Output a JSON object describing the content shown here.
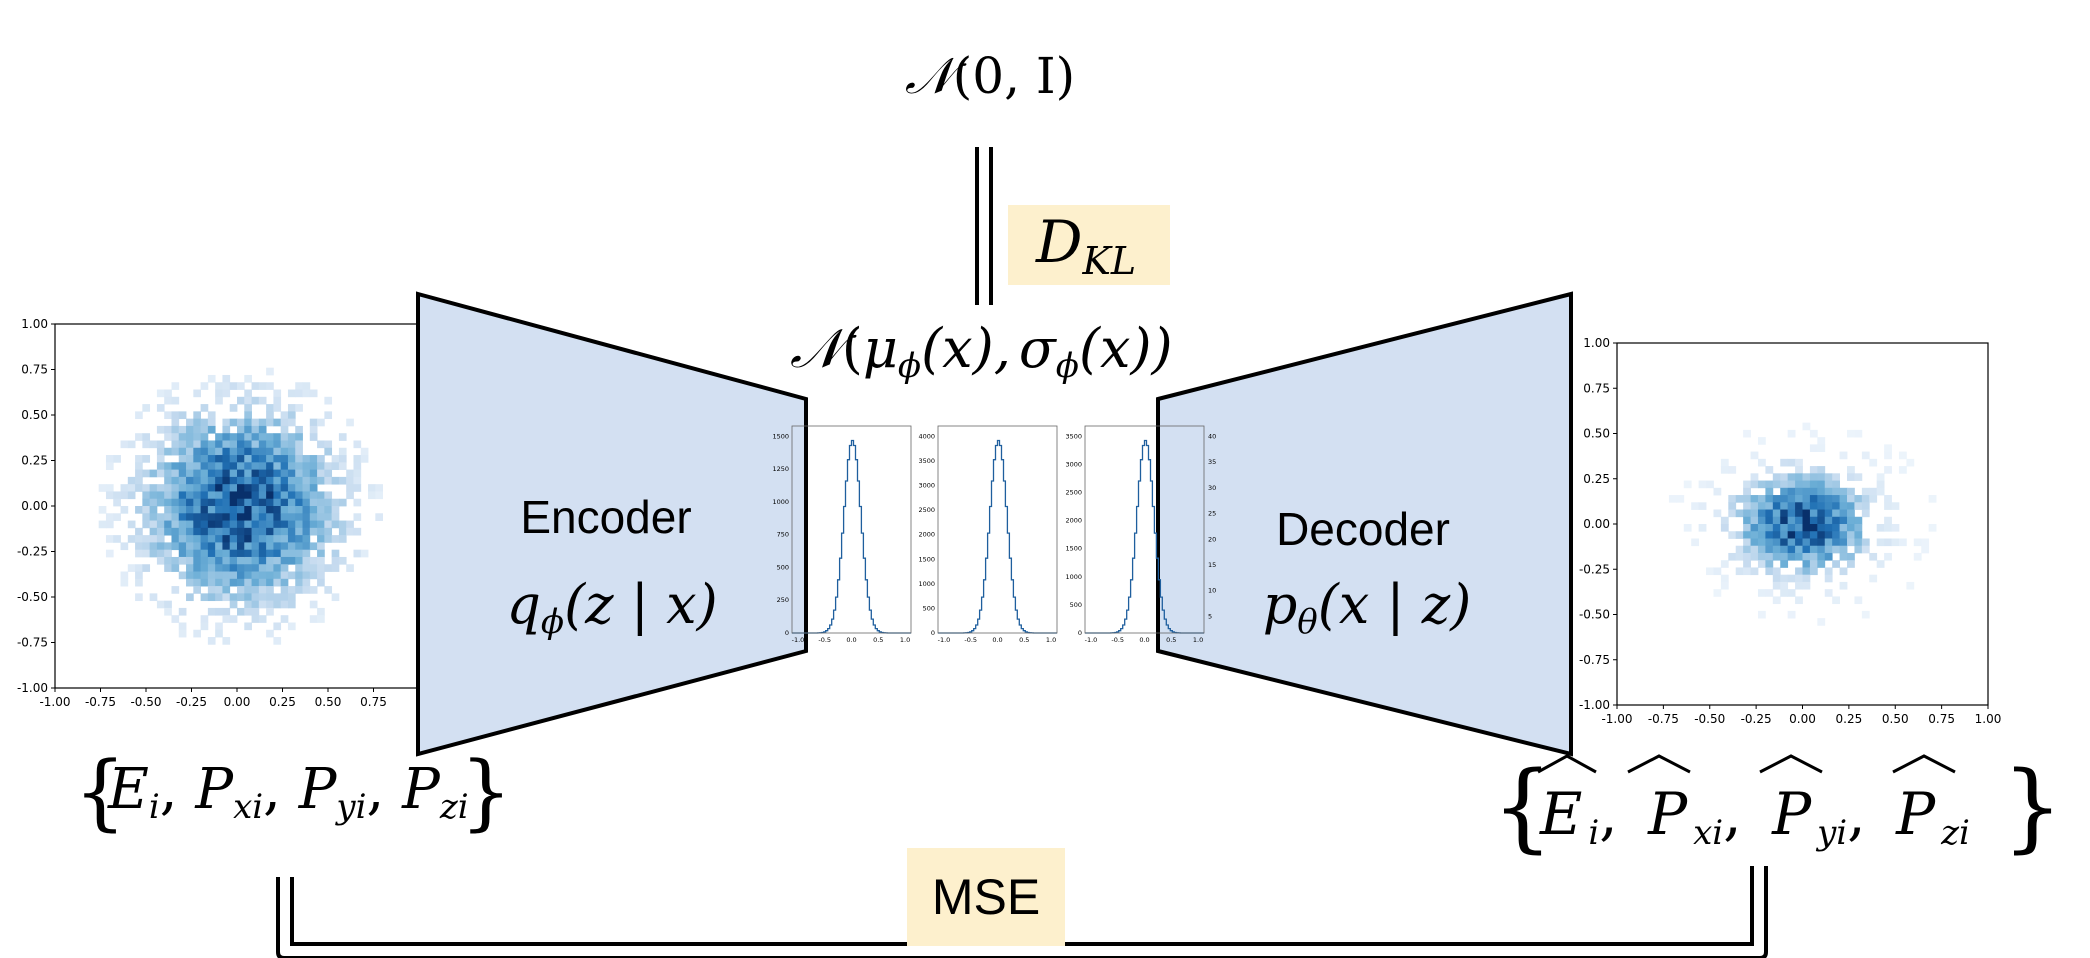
{
  "prior": {
    "N": "𝒩",
    "rest": "(0, I)"
  },
  "kl_label": {
    "main": "D",
    "sub": "KL"
  },
  "latent_dist": {
    "N": "𝒩",
    "open": "(",
    "mu": "μ",
    "phi1": "ϕ",
    "x1": "(x),",
    "sigma": "σ",
    "phi2": "ϕ",
    "x2": "(x))"
  },
  "encoder": {
    "title": "Encoder",
    "q": "q",
    "phi": "ϕ",
    "args": "(z | x)"
  },
  "decoder": {
    "title": "Decoder",
    "p": "p",
    "theta": "θ",
    "args": "(x | z)"
  },
  "input_set": {
    "brace_open": "{",
    "brace_close": "}",
    "items": [
      {
        "main": "E",
        "sub": "i"
      },
      {
        "main": "P",
        "sub": "xi"
      },
      {
        "main": "P",
        "sub": "yi"
      },
      {
        "main": "P",
        "sub": "zi"
      }
    ]
  },
  "output_set": {
    "brace_open": "{",
    "brace_close": "}",
    "items": [
      {
        "main": "E",
        "sub": "i"
      },
      {
        "main": "P",
        "sub": "xi"
      },
      {
        "main": "P",
        "sub": "yi"
      },
      {
        "main": "P",
        "sub": "zi"
      }
    ]
  },
  "mse_label": "MSE",
  "colors": {
    "trapezoid_fill": "#d3e0f2",
    "label_box": "#fdf0cd",
    "scatter_dark": "#08306b",
    "scatter_mid": "#2171b5",
    "scatter_light": "#c6dbef",
    "hist_line": "#1f5f9e"
  },
  "input_scatter": {
    "ticks": [
      "-1.00",
      "-0.75",
      "-0.50",
      "-0.25",
      "0.00",
      "0.25",
      "0.50",
      "0.75",
      "1.00"
    ]
  },
  "output_scatter": {
    "ticks": [
      "-1.00",
      "-0.75",
      "-0.50",
      "-0.25",
      "0.00",
      "0.25",
      "0.50",
      "0.75",
      "1.00"
    ]
  },
  "latent_histograms": [
    {
      "x_ticks": [
        "-1.0",
        "-0.5",
        "0.0",
        "0.5",
        "1.0"
      ],
      "y_ticks": [
        "0",
        "250",
        "500",
        "750",
        "1000",
        "1250",
        "1500"
      ],
      "y_side": "left"
    },
    {
      "x_ticks": [
        "-1.0",
        "-0.5",
        "0.0",
        "0.5",
        "1.0"
      ],
      "y_ticks": [
        "0",
        "500",
        "1000",
        "1500",
        "2000",
        "2500",
        "3000",
        "3500",
        "4000"
      ],
      "y_side": "left"
    },
    {
      "x_ticks": [
        "-1.0",
        "-0.5",
        "0.0",
        "0.5",
        "1.0"
      ],
      "y_ticks": [
        "0",
        "500",
        "1000",
        "1500",
        "2000",
        "2500",
        "3000",
        "3500"
      ],
      "y_side": "left"
    },
    {
      "x_ticks": [],
      "y_ticks": [
        "5",
        "10",
        "15",
        "20",
        "25",
        "30",
        "35",
        "40"
      ],
      "y_side": "right"
    }
  ]
}
